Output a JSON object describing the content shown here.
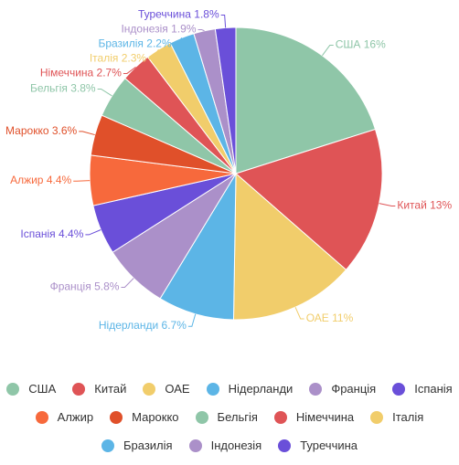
{
  "chart_data": {
    "type": "pie",
    "categories": [
      "США",
      "Китай",
      "ОАЕ",
      "Нідерланди",
      "Франція",
      "Іспанія",
      "Алжир",
      "Марокко",
      "Бельгія",
      "Німеччина",
      "Італія",
      "Бразилія",
      "Індонезія",
      "Туреччина"
    ],
    "values": [
      16,
      13,
      11,
      6.7,
      5.8,
      4.4,
      4.4,
      3.6,
      3.8,
      2.7,
      2.3,
      2.2,
      1.9,
      1.8
    ],
    "value_labels": [
      "16%",
      "13%",
      "11%",
      "6.7%",
      "5.8%",
      "4.4%",
      "4.4%",
      "3.6%",
      "3.8%",
      "2.7%",
      "2.3%",
      "2.2%",
      "1.9%",
      "1.8%"
    ],
    "colors": [
      "#8fc6a8",
      "#df5456",
      "#f1cd6b",
      "#5cb5e6",
      "#ab90c9",
      "#6a4fd9",
      "#f7693c",
      "#e0502a",
      "#8fc6a8",
      "#df5456",
      "#f1cd6b",
      "#5cb5e6",
      "#ab90c9",
      "#6a4fd9"
    ],
    "legend": "bottom"
  }
}
